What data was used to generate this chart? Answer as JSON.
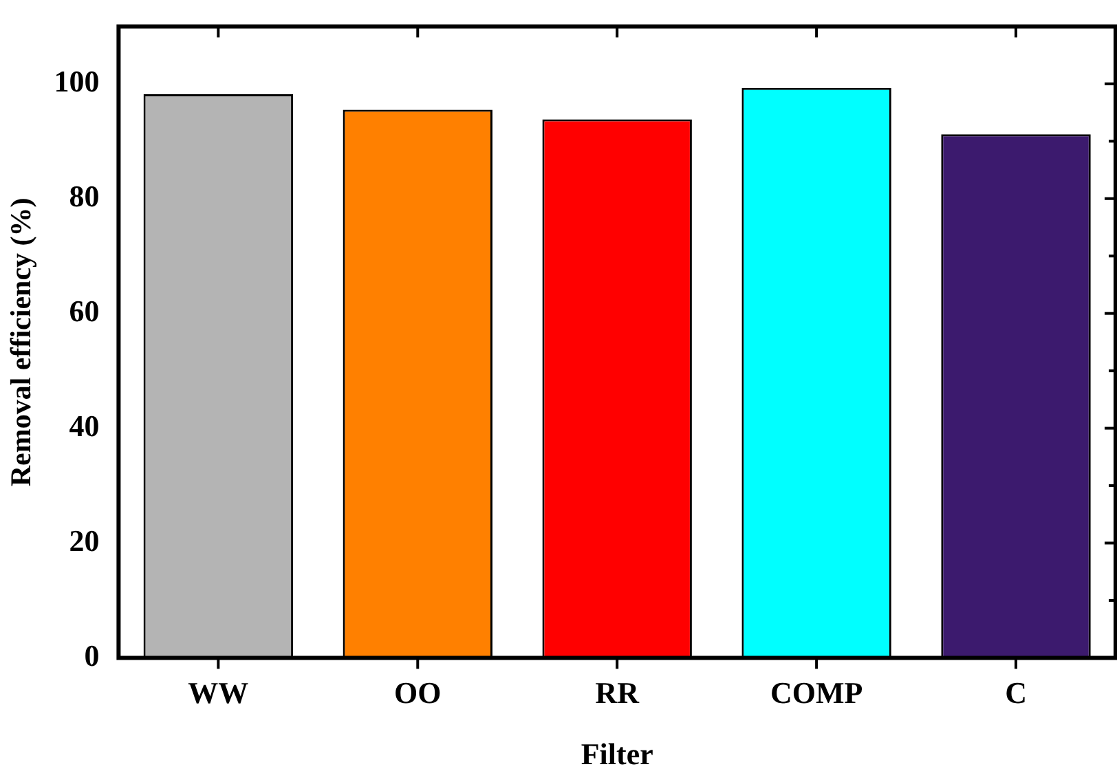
{
  "chart_data": {
    "type": "bar",
    "xlabel": "Filter",
    "ylabel": "Removal efficiency (%)",
    "categories": [
      "WW",
      "OO",
      "RR",
      "COMP",
      "C"
    ],
    "values": [
      98.2,
      95.5,
      93.8,
      99.3,
      91.2
    ],
    "colors": [
      "#b4b4b4",
      "#ff8000",
      "#ff0000",
      "#00ffff",
      "#3c1a6e"
    ],
    "ylim": [
      0,
      110
    ],
    "yticks": [
      0,
      {
        "value": 10,
        "label": null
      },
      20,
      {
        "value": 30,
        "label": null
      },
      40,
      {
        "value": 50,
        "label": null
      },
      60,
      {
        "value": 70,
        "label": null
      },
      80,
      {
        "value": 90,
        "label": null
      },
      100
    ],
    "grid": false,
    "legend": false
  }
}
